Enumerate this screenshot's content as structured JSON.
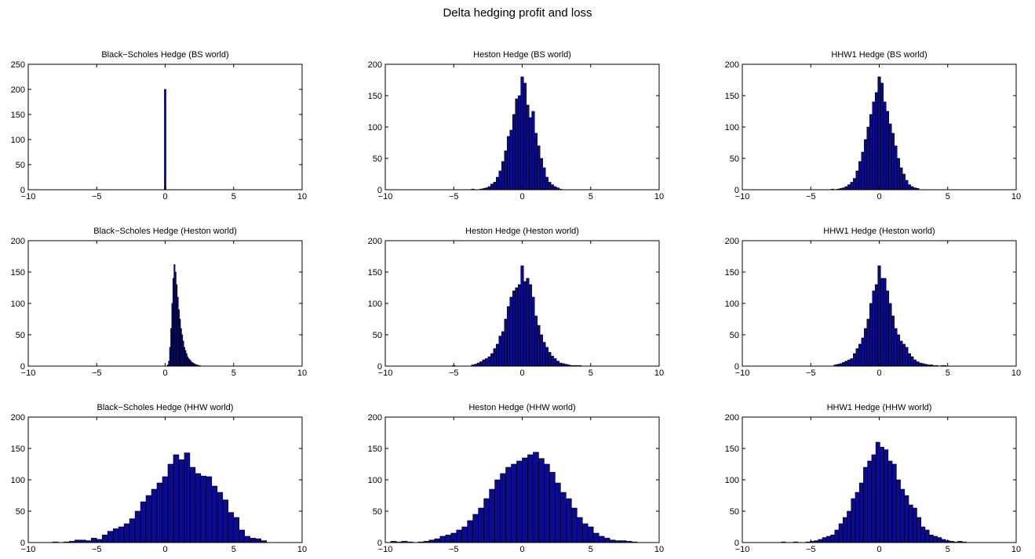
{
  "figure": {
    "title": "Delta hedging profit and loss"
  },
  "style": {
    "bar_fill": "#0b0b8f",
    "bar_edge": "#000000",
    "axes_color": "#000000",
    "background": "#ffffff"
  },
  "chart_data": [
    {
      "type": "bar",
      "title": "Black−Scholes Hedge (BS world)",
      "xlim": [
        -10,
        10
      ],
      "ylim": [
        0,
        250
      ],
      "xticks": [
        -10,
        -5,
        0,
        5,
        10
      ],
      "yticks": [
        0,
        50,
        100,
        150,
        200,
        250
      ],
      "bin_width": 0.12,
      "x": [
        0.0
      ],
      "values": [
        200
      ]
    },
    {
      "type": "bar",
      "title": "Heston Hedge (BS world)",
      "xlim": [
        -10,
        10
      ],
      "ylim": [
        0,
        200
      ],
      "xticks": [
        -10,
        -5,
        0,
        5,
        10
      ],
      "yticks": [
        0,
        50,
        100,
        150,
        200
      ],
      "bin_width": 0.2,
      "x": [
        -4.2,
        -4.0,
        -3.8,
        -3.6,
        -3.4,
        -3.2,
        -3.0,
        -2.8,
        -2.6,
        -2.4,
        -2.2,
        -2.0,
        -1.8,
        -1.6,
        -1.4,
        -1.2,
        -1.0,
        -0.8,
        -0.6,
        -0.4,
        -0.2,
        0.0,
        0.2,
        0.4,
        0.6,
        0.8,
        1.0,
        1.2,
        1.4,
        1.6,
        1.8,
        2.0,
        2.2,
        2.4,
        2.6,
        2.8
      ],
      "values": [
        0,
        0,
        0,
        1,
        0,
        0,
        1,
        2,
        3,
        5,
        9,
        12,
        20,
        30,
        45,
        62,
        85,
        95,
        120,
        145,
        150,
        180,
        170,
        135,
        115,
        125,
        90,
        70,
        50,
        35,
        20,
        12,
        8,
        5,
        3,
        1
      ]
    },
    {
      "type": "bar",
      "title": "HHW1 Hedge (BS world)",
      "xlim": [
        -10,
        10
      ],
      "ylim": [
        0,
        200
      ],
      "xticks": [
        -10,
        -5,
        0,
        5,
        10
      ],
      "yticks": [
        0,
        50,
        100,
        150,
        200
      ],
      "bin_width": 0.2,
      "x": [
        -4.2,
        -4.0,
        -3.8,
        -3.6,
        -3.4,
        -3.2,
        -3.0,
        -2.8,
        -2.6,
        -2.4,
        -2.2,
        -2.0,
        -1.8,
        -1.6,
        -1.4,
        -1.2,
        -1.0,
        -0.8,
        -0.6,
        -0.4,
        -0.2,
        0.0,
        0.2,
        0.4,
        0.6,
        0.8,
        1.0,
        1.2,
        1.4,
        1.6,
        1.8,
        2.0,
        2.2,
        2.4,
        2.6,
        2.8
      ],
      "values": [
        0,
        0,
        0,
        0,
        1,
        0,
        1,
        2,
        3,
        5,
        8,
        12,
        18,
        30,
        45,
        60,
        80,
        100,
        120,
        140,
        155,
        180,
        170,
        140,
        125,
        105,
        90,
        70,
        50,
        35,
        25,
        15,
        8,
        5,
        3,
        2
      ]
    },
    {
      "type": "bar",
      "title": "Black−Scholes Hedge (Heston world)",
      "xlim": [
        -10,
        10
      ],
      "ylim": [
        0,
        200
      ],
      "xticks": [
        -10,
        -5,
        0,
        5,
        10
      ],
      "yticks": [
        0,
        50,
        100,
        150,
        200
      ],
      "bin_width": 0.08,
      "x": [
        0.2,
        0.28,
        0.36,
        0.44,
        0.52,
        0.6,
        0.68,
        0.76,
        0.84,
        0.92,
        1.0,
        1.08,
        1.16,
        1.24,
        1.32,
        1.4,
        1.48,
        1.56,
        1.64,
        1.72,
        1.8,
        1.88,
        1.96,
        2.04,
        2.12,
        2.2,
        2.28,
        2.36,
        2.44,
        2.52
      ],
      "values": [
        2,
        8,
        30,
        60,
        100,
        140,
        162,
        150,
        130,
        110,
        90,
        75,
        60,
        50,
        40,
        30,
        25,
        20,
        15,
        12,
        10,
        8,
        6,
        5,
        4,
        3,
        2,
        2,
        1,
        1
      ]
    },
    {
      "type": "bar",
      "title": "Heston Hedge (Heston world)",
      "xlim": [
        -10,
        10
      ],
      "ylim": [
        0,
        200
      ],
      "xticks": [
        -10,
        -5,
        0,
        5,
        10
      ],
      "yticks": [
        0,
        50,
        100,
        150,
        200
      ],
      "bin_width": 0.2,
      "x": [
        -5.0,
        -4.8,
        -4.6,
        -4.4,
        -4.2,
        -4.0,
        -3.8,
        -3.6,
        -3.4,
        -3.2,
        -3.0,
        -2.8,
        -2.6,
        -2.4,
        -2.2,
        -2.0,
        -1.8,
        -1.6,
        -1.4,
        -1.2,
        -1.0,
        -0.8,
        -0.6,
        -0.4,
        -0.2,
        0.0,
        0.2,
        0.4,
        0.6,
        0.8,
        1.0,
        1.2,
        1.4,
        1.6,
        1.8,
        2.0,
        2.2,
        2.4,
        2.6,
        2.8,
        3.0,
        3.2,
        3.4,
        3.6,
        3.8,
        4.0,
        4.2
      ],
      "values": [
        1,
        0,
        0,
        0,
        0,
        0,
        0,
        2,
        3,
        5,
        7,
        10,
        12,
        15,
        20,
        28,
        35,
        48,
        55,
        75,
        95,
        110,
        120,
        125,
        130,
        160,
        135,
        140,
        130,
        110,
        80,
        65,
        50,
        38,
        30,
        22,
        16,
        12,
        8,
        5,
        4,
        3,
        2,
        1,
        1,
        1,
        1
      ]
    },
    {
      "type": "bar",
      "title": "HHW1 Hedge (Heston world)",
      "xlim": [
        -10,
        10
      ],
      "ylim": [
        0,
        200
      ],
      "xticks": [
        -10,
        -5,
        0,
        5,
        10
      ],
      "yticks": [
        0,
        50,
        100,
        150,
        200
      ],
      "bin_width": 0.2,
      "x": [
        -4.6,
        -4.4,
        -4.2,
        -4.0,
        -3.8,
        -3.6,
        -3.4,
        -3.2,
        -3.0,
        -2.8,
        -2.6,
        -2.4,
        -2.2,
        -2.0,
        -1.8,
        -1.6,
        -1.4,
        -1.2,
        -1.0,
        -0.8,
        -0.6,
        -0.4,
        -0.2,
        0.0,
        0.2,
        0.4,
        0.6,
        0.8,
        1.0,
        1.2,
        1.4,
        1.6,
        1.8,
        2.0,
        2.2,
        2.4,
        2.6,
        2.8,
        3.0,
        3.2,
        3.4,
        3.6,
        3.8,
        4.0,
        4.2,
        4.4,
        4.6,
        4.8
      ],
      "values": [
        0,
        0,
        0,
        0,
        0,
        0,
        0,
        2,
        3,
        4,
        6,
        8,
        10,
        12,
        20,
        28,
        35,
        45,
        60,
        75,
        100,
        120,
        130,
        160,
        140,
        140,
        120,
        100,
        80,
        60,
        50,
        40,
        35,
        30,
        20,
        15,
        10,
        7,
        5,
        4,
        3,
        2,
        2,
        1,
        1,
        0,
        1,
        1
      ]
    },
    {
      "type": "bar",
      "title": "Black−Scholes Hedge (HHW world)",
      "xlim": [
        -10,
        10
      ],
      "ylim": [
        0,
        200
      ],
      "xticks": [
        -10,
        -5,
        0,
        5,
        10
      ],
      "yticks": [
        0,
        50,
        100,
        150,
        200
      ],
      "bin_width": 0.4,
      "x": [
        -8.0,
        -7.6,
        -7.2,
        -6.8,
        -6.4,
        -6.0,
        -5.6,
        -5.2,
        -4.8,
        -4.4,
        -4.0,
        -3.6,
        -3.2,
        -2.8,
        -2.4,
        -2.0,
        -1.6,
        -1.2,
        -0.8,
        -0.4,
        0.0,
        0.4,
        0.8,
        1.2,
        1.6,
        2.0,
        2.4,
        2.8,
        3.2,
        3.6,
        4.0,
        4.4,
        4.8,
        5.2,
        5.6,
        6.0,
        6.4,
        6.8,
        7.2
      ],
      "values": [
        1,
        0,
        1,
        2,
        4,
        4,
        3,
        7,
        5,
        12,
        18,
        22,
        25,
        30,
        38,
        50,
        65,
        75,
        85,
        95,
        105,
        125,
        140,
        132,
        143,
        120,
        110,
        106,
        105,
        90,
        80,
        68,
        48,
        40,
        20,
        10,
        7,
        6,
        3
      ]
    },
    {
      "type": "bar",
      "title": "Heston Hedge (HHW world)",
      "xlim": [
        -10,
        10
      ],
      "ylim": [
        0,
        200
      ],
      "xticks": [
        -10,
        -5,
        0,
        5,
        10
      ],
      "yticks": [
        0,
        50,
        100,
        150,
        200
      ],
      "bin_width": 0.4,
      "x": [
        -9.4,
        -9.0,
        -8.6,
        -8.2,
        -7.8,
        -7.4,
        -7.0,
        -6.6,
        -6.2,
        -5.8,
        -5.4,
        -5.0,
        -4.6,
        -4.2,
        -3.8,
        -3.4,
        -3.0,
        -2.6,
        -2.2,
        -1.8,
        -1.4,
        -1.0,
        -0.6,
        -0.2,
        0.2,
        0.6,
        1.0,
        1.4,
        1.8,
        2.2,
        2.6,
        3.0,
        3.4,
        3.8,
        4.2,
        4.6,
        5.0,
        5.4,
        5.8,
        6.2,
        6.6,
        7.0,
        7.4,
        7.8,
        8.2
      ],
      "values": [
        2,
        1,
        2,
        1,
        0,
        1,
        2,
        4,
        6,
        10,
        12,
        15,
        20,
        25,
        35,
        45,
        55,
        70,
        85,
        100,
        110,
        120,
        125,
        130,
        135,
        140,
        144,
        134,
        125,
        112,
        95,
        80,
        70,
        55,
        40,
        30,
        25,
        15,
        10,
        7,
        4,
        3,
        3,
        2,
        1
      ]
    },
    {
      "type": "bar",
      "title": "HHW1 Hedge (HHW world)",
      "xlim": [
        -10,
        10
      ],
      "ylim": [
        0,
        200
      ],
      "xticks": [
        -10,
        -5,
        0,
        5,
        10
      ],
      "yticks": [
        0,
        50,
        100,
        150,
        200
      ],
      "bin_width": 0.3,
      "x": [
        -7.0,
        -6.7,
        -6.4,
        -6.1,
        -5.8,
        -5.5,
        -5.2,
        -4.9,
        -4.6,
        -4.3,
        -4.0,
        -3.7,
        -3.4,
        -3.1,
        -2.8,
        -2.5,
        -2.2,
        -1.9,
        -1.6,
        -1.3,
        -1.0,
        -0.7,
        -0.4,
        -0.1,
        0.2,
        0.5,
        0.8,
        1.1,
        1.4,
        1.7,
        2.0,
        2.3,
        2.6,
        2.9,
        3.2,
        3.5,
        3.8,
        4.1,
        4.4,
        4.7,
        5.0,
        5.3,
        5.6,
        5.9,
        6.2,
        6.5
      ],
      "values": [
        1,
        0,
        0,
        1,
        0,
        0,
        1,
        2,
        3,
        5,
        8,
        10,
        12,
        20,
        30,
        40,
        50,
        70,
        80,
        95,
        120,
        130,
        140,
        160,
        152,
        148,
        130,
        125,
        100,
        85,
        75,
        60,
        55,
        40,
        25,
        20,
        12,
        10,
        8,
        5,
        3,
        2,
        1,
        2,
        1,
        0
      ]
    }
  ]
}
